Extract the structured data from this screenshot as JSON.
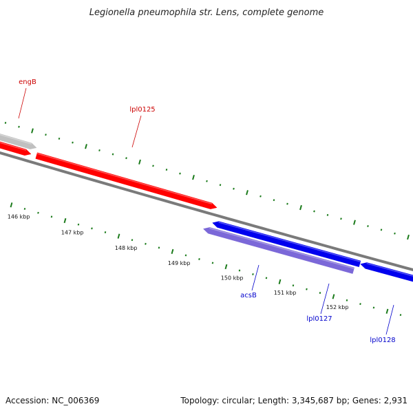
{
  "title": "Legionella pneumophila str. Lens, complete genome",
  "accession": "Accession: NC_006369",
  "topology": "Topology: circular; Length: 3,345,687 bp; Genes: 2,931",
  "colors": {
    "forward_gene": "#ff0000",
    "reverse_gene": "#0000ee",
    "reverse_gene_light": "#7b68d8",
    "pseudo_gene": "#c0c0c0",
    "backbone": "#7a7a7a",
    "ticks": "#1a7a1a",
    "forward_label": "#cc0000",
    "reverse_label": "#0000cc"
  },
  "scale": {
    "unit": "kbp",
    "labels": [
      "146 kbp",
      "147 kbp",
      "148 kbp",
      "149 kbp",
      "150 kbp",
      "151 kbp",
      "152 kbp"
    ]
  },
  "genes": [
    {
      "name": "engB",
      "strand": "forward",
      "kind": "pseudo",
      "labeled": true
    },
    {
      "name": "",
      "strand": "forward",
      "kind": "cds",
      "labeled": false
    },
    {
      "name": "lpl0125",
      "strand": "forward",
      "kind": "cds",
      "labeled": true
    },
    {
      "name": "",
      "strand": "reverse",
      "kind": "cds",
      "labeled": false
    },
    {
      "name": "acsB",
      "strand": "reverse",
      "kind": "light",
      "labeled": true
    },
    {
      "name": "lpl0127",
      "strand": "reverse",
      "kind": "cds",
      "labeled": true
    },
    {
      "name": "lpl0128",
      "strand": "reverse",
      "kind": "cds",
      "labeled": true
    }
  ]
}
